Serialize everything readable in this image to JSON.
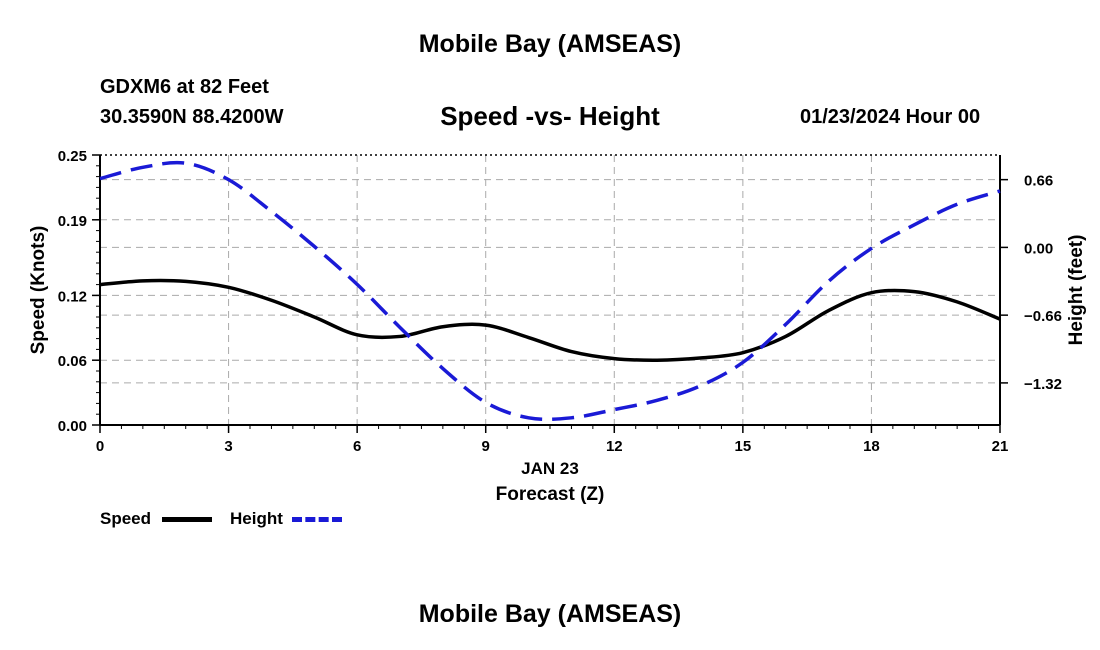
{
  "header": {
    "title": "Mobile Bay (AMSEAS)",
    "station": "GDXM6 at 82 Feet",
    "coordinates": "30.3590N  88.4200W",
    "datetime": "01/23/2024 Hour 00",
    "footer_title": "Mobile Bay (AMSEAS)"
  },
  "legend": {
    "speed_label": "Speed",
    "height_label": "Height"
  },
  "colors": {
    "speed": "#000000",
    "height": "#1a1ad6",
    "grid": "#aaaaaa"
  },
  "chart_data": {
    "type": "line",
    "title": "Speed -vs- Height",
    "xlabel": "Forecast (Z)",
    "xlabel_date": "JAN 23",
    "ylabel": "Speed (Knots)",
    "y2label": "Height (feet)",
    "xlim": [
      0,
      21
    ],
    "ylim": [
      0,
      0.25
    ],
    "y2lim": [
      -1.73,
      0.9
    ],
    "x_ticks": [
      "0",
      "3",
      "6",
      "9",
      "12",
      "15",
      "18",
      "21"
    ],
    "y_ticks": [
      "0.00",
      "0.06",
      "0.12",
      "0.19",
      "0.25"
    ],
    "y2_ticks": [
      "0.66",
      "0.00",
      "−0.66",
      "−1.32"
    ],
    "grid": true,
    "series": [
      {
        "name": "Speed",
        "axis": "left",
        "style": "solid",
        "x": [
          0,
          1,
          2,
          3,
          4,
          5,
          6,
          7,
          8,
          9,
          10,
          11,
          12,
          13,
          14,
          15,
          16,
          17,
          18,
          19,
          20,
          21
        ],
        "values": [
          0.13,
          0.1335,
          0.133,
          0.1275,
          0.1155,
          0.1,
          0.0835,
          0.082,
          0.091,
          0.0925,
          0.081,
          0.068,
          0.0615,
          0.06,
          0.062,
          0.067,
          0.082,
          0.106,
          0.1225,
          0.1235,
          0.114,
          0.098
        ]
      },
      {
        "name": "Height",
        "axis": "right",
        "style": "dashed",
        "x": [
          0,
          1,
          2,
          3,
          4,
          5,
          6,
          7,
          8,
          9,
          10,
          11,
          12,
          13,
          14,
          15,
          16,
          17,
          18,
          19,
          20,
          21
        ],
        "values": [
          0.67,
          0.78,
          0.82,
          0.66,
          0.35,
          0.01,
          -0.36,
          -0.78,
          -1.18,
          -1.51,
          -1.66,
          -1.66,
          -1.58,
          -1.49,
          -1.35,
          -1.12,
          -0.75,
          -0.33,
          -0.01,
          0.22,
          0.42,
          0.55
        ]
      }
    ]
  }
}
